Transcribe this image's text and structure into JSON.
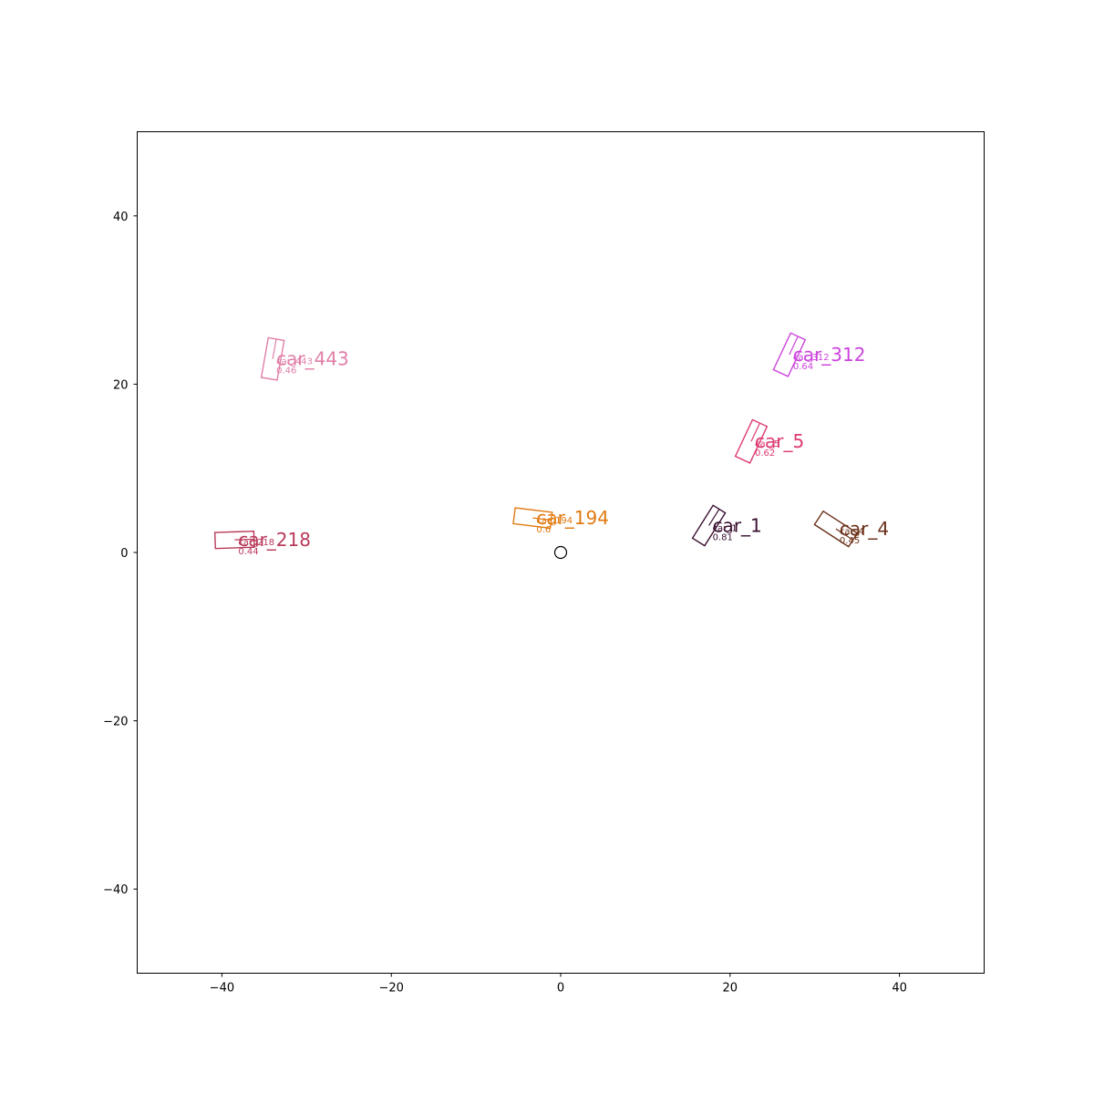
{
  "chart_data": {
    "type": "scatter",
    "title": "",
    "xlabel": "",
    "ylabel": "",
    "xlim": [
      -50,
      50
    ],
    "ylim": [
      -50,
      50
    ],
    "xticks": [
      -40,
      -20,
      0,
      20,
      40
    ],
    "yticks": [
      -40,
      -20,
      0,
      20,
      40
    ],
    "xtick_labels": [
      "−40",
      "−20",
      "0",
      "20",
      "40"
    ],
    "ytick_labels": [
      "−40",
      "−20",
      "0",
      "20",
      "40"
    ],
    "grid": false,
    "ego": {
      "x": 0,
      "y": 0,
      "marker": "circle"
    },
    "objects": [
      {
        "name": "car_443",
        "id_label": "car_443",
        "score": "0.46",
        "x": -34.0,
        "y": 23.0,
        "length": 4.8,
        "width": 1.9,
        "yaw_deg": 80,
        "color": "#e07fa8"
      },
      {
        "name": "car_312",
        "id_label": "car_312",
        "score": "0.64",
        "x": 27.0,
        "y": 23.5,
        "length": 4.8,
        "width": 1.9,
        "yaw_deg": 65,
        "color": "#cc44dd"
      },
      {
        "name": "car_5",
        "id_label": "car_5",
        "score": "0.62",
        "x": 22.5,
        "y": 13.2,
        "length": 4.8,
        "width": 1.9,
        "yaw_deg": 65,
        "color": "#dd3a72"
      },
      {
        "name": "car_194",
        "id_label": "car_194",
        "score": "0.6",
        "x": -3.3,
        "y": 4.1,
        "length": 4.4,
        "width": 1.9,
        "yaw_deg": -7,
        "color": "#e07a10"
      },
      {
        "name": "car_1",
        "id_label": "car_1",
        "score": "0.81",
        "x": 17.5,
        "y": 3.2,
        "length": 4.6,
        "width": 1.7,
        "yaw_deg": 58,
        "color": "#3a1030"
      },
      {
        "name": "car_4",
        "id_label": "car_4",
        "score": "0.45",
        "x": 32.5,
        "y": 2.8,
        "length": 4.8,
        "width": 1.9,
        "yaw_deg": -33,
        "color": "#6b3018"
      },
      {
        "name": "car_218",
        "id_label": "car_218",
        "score": "0.44",
        "x": -38.5,
        "y": 1.5,
        "length": 4.6,
        "width": 1.9,
        "yaw_deg": 2,
        "color": "#b83a5a"
      }
    ]
  }
}
